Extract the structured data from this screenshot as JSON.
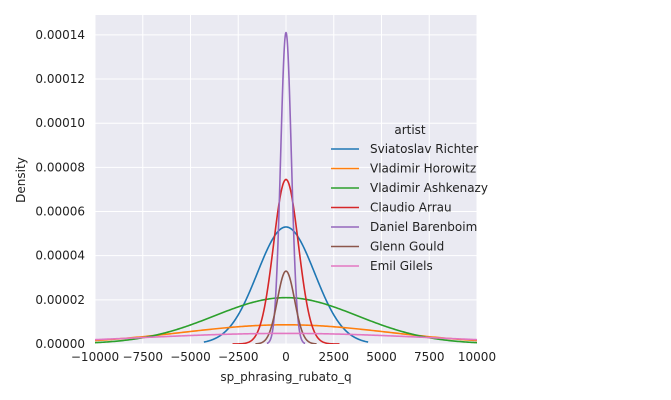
{
  "chart_data": {
    "type": "line",
    "title": "",
    "xlabel": "sp_phrasing_rubato_q",
    "ylabel": "Density",
    "xlim": [
      -10000,
      10000
    ],
    "ylim": [
      0,
      0.000149
    ],
    "grid": true,
    "x_ticks": [
      -10000,
      -7500,
      -5000,
      -2500,
      0,
      2500,
      5000,
      7500,
      10000
    ],
    "x_tick_labels": [
      "−10000",
      "−7500",
      "−5000",
      "−2500",
      "0",
      "2500",
      "5000",
      "7500",
      "10000"
    ],
    "y_ticks": [
      0,
      2e-05,
      4e-05,
      6e-05,
      8e-05,
      0.0001,
      0.00012,
      0.00014
    ],
    "y_tick_labels": [
      "0.00000",
      "0.00002",
      "0.00004",
      "0.00006",
      "0.00008",
      "0.00010",
      "0.00012",
      "0.00014"
    ],
    "legend": {
      "title": "artist",
      "placement": "center-right"
    },
    "series": [
      {
        "name": "Sviatoslav Richter",
        "color": "#1f77b4",
        "peak_x": 0,
        "peak_y": 5.3e-05,
        "sigma": 1500,
        "range": [
          -4300,
          4300
        ]
      },
      {
        "name": "Vladimir Horowitz",
        "color": "#ff7f0e",
        "peak_x": 0,
        "peak_y": 8.7e-06,
        "sigma": 5400,
        "range": [
          -10000,
          10000
        ]
      },
      {
        "name": "Vladimir Ashkenazy",
        "color": "#2ca02c",
        "peak_x": 0,
        "peak_y": 2.1e-05,
        "sigma": 3750,
        "range": [
          -10000,
          10000
        ]
      },
      {
        "name": "Claudio Arrau",
        "color": "#d62728",
        "peak_x": 0,
        "peak_y": 7.45e-05,
        "sigma": 650,
        "range": [
          -2800,
          2800
        ]
      },
      {
        "name": "Daniel Barenboim",
        "color": "#9467bd",
        "peak_x": 0,
        "peak_y": 0.000141,
        "sigma": 280,
        "range": [
          -1000,
          1000
        ]
      },
      {
        "name": "Glenn Gould",
        "color": "#8c564b",
        "peak_x": 0,
        "peak_y": 3.3e-05,
        "sigma": 450,
        "range": [
          -1600,
          1600
        ]
      },
      {
        "name": "Emil Gilels",
        "color": "#e377c2",
        "peak_x": 0,
        "peak_y": 4.8e-06,
        "sigma": 7500,
        "range": [
          -10000,
          10000
        ]
      }
    ]
  }
}
